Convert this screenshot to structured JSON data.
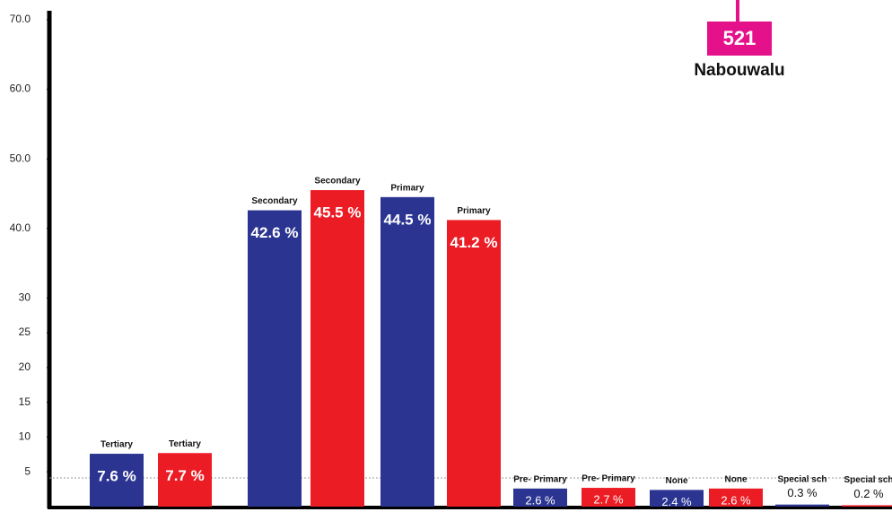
{
  "chart_data": {
    "type": "bar",
    "categories": [
      "Tertiary",
      "Tertiary",
      "Secondary",
      "Secondary",
      "Primary",
      "Primary",
      "Pre- Primary",
      "Pre- Primary",
      "None",
      "None",
      "Special sch",
      "Special sch"
    ],
    "values": [
      7.6,
      7.7,
      42.6,
      45.5,
      44.5,
      41.2,
      2.6,
      2.7,
      2.4,
      2.6,
      0.3,
      0.2
    ],
    "value_labels": [
      "7.6 %",
      "7.7 %",
      "42.6 %",
      "45.5 %",
      "44.5 %",
      "41.2 %",
      "2.6 %",
      "2.7 %",
      "2.4 %",
      "2.6 %",
      "0.3 %",
      "0.2 %"
    ],
    "colors": [
      "#2b3591",
      "#ec1c24",
      "#2b3591",
      "#ec1c24",
      "#2b3591",
      "#ec1c24",
      "#2b3591",
      "#ec1c24",
      "#2b3591",
      "#ec1c24",
      "#2b3591",
      "#ec1c24"
    ],
    "ylim": [
      0,
      70
    ],
    "yticks": [
      {
        "value": 70,
        "label": "70.0"
      },
      {
        "value": 60,
        "label": "60.0"
      },
      {
        "value": 50,
        "label": "50.0"
      },
      {
        "value": 40,
        "label": "40.0"
      },
      30,
      25,
      20,
      15,
      10,
      5
    ],
    "badge": {
      "value": "521",
      "label": "Nabouwalu",
      "color": "#e5118b"
    }
  }
}
